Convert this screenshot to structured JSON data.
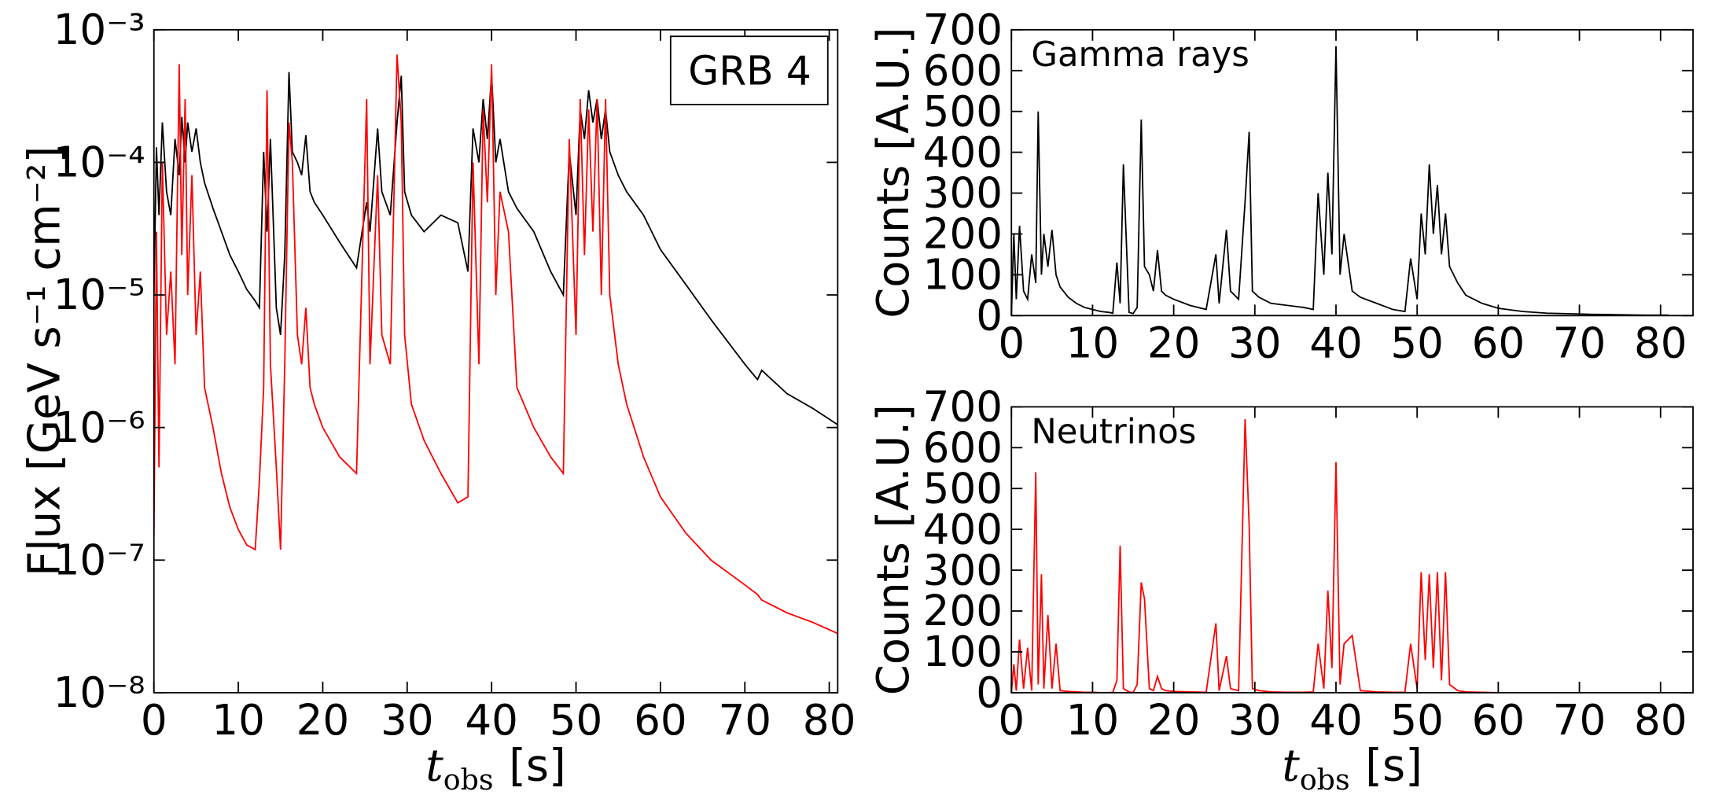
{
  "chart_data": [
    {
      "type": "line",
      "log_y": true,
      "y_label": "Flux [GeV s⁻¹ cm⁻²]",
      "x_label": {
        "symbol": "t",
        "subscript": "obs",
        "unit": "[s]"
      },
      "annotation": "GRB 4",
      "annotation_box": true,
      "xlim": [
        0,
        81
      ],
      "ylim": [
        1e-08,
        0.001
      ],
      "xticks": [
        0,
        10,
        20,
        30,
        40,
        50,
        60,
        70,
        80
      ],
      "yticks": [
        {
          "value": 1e-08,
          "label": "10⁻⁸"
        },
        {
          "value": 1e-07,
          "label": "10⁻⁷"
        },
        {
          "value": 1e-06,
          "label": "10⁻⁶"
        },
        {
          "value": 1e-05,
          "label": "10⁻⁵"
        },
        {
          "value": 0.0001,
          "label": "10⁻⁴"
        },
        {
          "value": 0.001,
          "label": "10⁻³"
        }
      ],
      "x": [
        0,
        0.3,
        0.6,
        1,
        1.5,
        2,
        2.5,
        3,
        3.3,
        3.7,
        4,
        4.5,
        5,
        5.5,
        6,
        7,
        8,
        9,
        10,
        11,
        12,
        12.5,
        13,
        13.4,
        13.8,
        14.5,
        15,
        15.5,
        16,
        16.4,
        17,
        17.5,
        18,
        18.5,
        19,
        20,
        22,
        24,
        25.2,
        25.6,
        26.5,
        27,
        28,
        28.8,
        29.3,
        29.7,
        30.5,
        32,
        34,
        36,
        37.2,
        37.8,
        38.5,
        39,
        39.5,
        40,
        40.5,
        41,
        42,
        43,
        45,
        47,
        48.5,
        49.2,
        50,
        50.5,
        51,
        51.5,
        52,
        52.5,
        53,
        53.5,
        54,
        55,
        56,
        58,
        60,
        63,
        66,
        70,
        71.5,
        72,
        75,
        78,
        81
      ],
      "series": [
        {
          "color": "#000000",
          "values": [
            1e-05,
            0.00013,
            4e-05,
            0.0002,
            6e-05,
            4e-05,
            0.00015,
            8e-05,
            0.00022,
            0.0001,
            0.0002,
            0.00012,
            0.00018,
            0.0001,
            7e-05,
            4.5e-05,
            3e-05,
            2e-05,
            1.5e-05,
            1.1e-05,
            9e-06,
            8e-06,
            0.00012,
            3e-05,
            0.00015,
            8e-06,
            5e-06,
            2e-05,
            0.00048,
            0.00012,
            0.0001,
            8e-05,
            0.00016,
            6e-05,
            5e-05,
            4e-05,
            2.5e-05,
            1.6e-05,
            5e-05,
            3e-05,
            0.00018,
            6e-05,
            4e-05,
            0.0002,
            0.00045,
            6e-05,
            4e-05,
            3e-05,
            4e-05,
            3.5e-05,
            1.5e-05,
            0.00018,
            0.0001,
            0.0003,
            0.00015,
            0.00046,
            0.0001,
            0.00015,
            6e-05,
            4.5e-05,
            3e-05,
            1.5e-05,
            1e-05,
            0.00012,
            4e-05,
            0.00025,
            0.00015,
            0.00035,
            0.0002,
            0.0003,
            0.00015,
            0.00025,
            0.00012,
            8e-05,
            6e-05,
            4e-05,
            2.2e-05,
            1.2e-05,
            6.5e-06,
            3e-06,
            2.3e-06,
            2.7e-06,
            1.8e-06,
            1.4e-06,
            1.05e-06
          ]
        },
        {
          "color": "#ff0000",
          "values": [
            1.5e-07,
            3e-05,
            5e-07,
            0.0001,
            5e-06,
            1.5e-05,
            3e-06,
            0.00055,
            2e-05,
            0.0003,
            1e-05,
            8e-05,
            5e-06,
            1.5e-05,
            2e-06,
            1e-06,
            4.5e-07,
            2.5e-07,
            1.7e-07,
            1.3e-07,
            1.2e-07,
            4e-07,
            2e-06,
            0.00035,
            3e-06,
            5e-07,
            1.2e-07,
            3e-06,
            0.0002,
            0.0001,
            5e-06,
            3e-06,
            8e-06,
            2e-06,
            1.5e-06,
            1e-06,
            6e-07,
            4.5e-07,
            0.0003,
            3e-06,
            8e-05,
            5e-06,
            3e-06,
            0.00065,
            0.0002,
            5e-06,
            1.5e-06,
            8e-07,
            4.5e-07,
            2.7e-07,
            3e-07,
            0.0001,
            3e-06,
            0.00025,
            5e-05,
            0.00055,
            1e-05,
            6e-05,
            3e-05,
            2e-06,
            1e-06,
            6e-07,
            4.5e-07,
            0.00015,
            5e-06,
            0.0003,
            2e-05,
            0.00025,
            3e-05,
            0.0003,
            1e-05,
            0.0003,
            1e-05,
            3e-06,
            1.5e-06,
            6e-07,
            3e-07,
            1.6e-07,
            1e-07,
            6.5e-08,
            5.5e-08,
            5e-08,
            4e-08,
            3.4e-08,
            2.8e-08
          ]
        }
      ]
    },
    {
      "type": "line",
      "y_label": "Counts [A.U.]",
      "annotation": "Gamma rays",
      "xlim": [
        0,
        84
      ],
      "ylim": [
        0,
        700
      ],
      "xticks": [
        0,
        10,
        20,
        30,
        40,
        50,
        60,
        70,
        80
      ],
      "yticks": [
        0,
        100,
        200,
        300,
        400,
        500,
        600,
        700
      ],
      "x": [
        0,
        0.3,
        0.6,
        1,
        1.5,
        2,
        2.5,
        3,
        3.3,
        3.7,
        4,
        4.5,
        5,
        5.5,
        6,
        7,
        8,
        9,
        10,
        11,
        12,
        12.5,
        13,
        13.4,
        13.8,
        14.5,
        15,
        15.5,
        16,
        16.4,
        17,
        17.5,
        18,
        18.5,
        19,
        20,
        22,
        24,
        25.2,
        25.6,
        26.5,
        27,
        28,
        28.8,
        29.3,
        29.7,
        30.5,
        32,
        34,
        36,
        37.2,
        37.8,
        38.5,
        39,
        39.5,
        40,
        40.5,
        41,
        42,
        43,
        45,
        47,
        48.5,
        49.2,
        50,
        50.5,
        51,
        51.5,
        52,
        52.5,
        53,
        53.5,
        54,
        55,
        56,
        58,
        60,
        63,
        66,
        70,
        71.5,
        72,
        75,
        78,
        81
      ],
      "series": [
        {
          "color": "#000000",
          "values": [
            0,
            200,
            40,
            220,
            60,
            40,
            150,
            80,
            500,
            100,
            200,
            120,
            210,
            100,
            70,
            45,
            30,
            20,
            15,
            10,
            8,
            6,
            130,
            30,
            370,
            8,
            5,
            20,
            480,
            120,
            100,
            60,
            160,
            60,
            50,
            40,
            25,
            15,
            150,
            30,
            210,
            60,
            40,
            280,
            450,
            60,
            45,
            30,
            25,
            20,
            15,
            300,
            100,
            350,
            150,
            660,
            100,
            200,
            60,
            45,
            30,
            15,
            10,
            140,
            40,
            250,
            150,
            370,
            200,
            320,
            150,
            250,
            120,
            80,
            50,
            30,
            18,
            10,
            6,
            4,
            3,
            3,
            2,
            1,
            1
          ]
        }
      ]
    },
    {
      "type": "line",
      "y_label": "Counts [A.U.]",
      "annotation": "Neutrinos",
      "x_label": {
        "symbol": "t",
        "subscript": "obs",
        "unit": "[s]"
      },
      "xlim": [
        0,
        84
      ],
      "ylim": [
        0,
        700
      ],
      "xticks": [
        0,
        10,
        20,
        30,
        40,
        50,
        60,
        70,
        80
      ],
      "yticks": [
        0,
        100,
        200,
        300,
        400,
        500,
        600,
        700
      ],
      "x": [
        0,
        0.3,
        0.6,
        1,
        1.5,
        2,
        2.5,
        3,
        3.3,
        3.7,
        4,
        4.5,
        5,
        5.5,
        6,
        7,
        8,
        9,
        10,
        11,
        12,
        12.5,
        13,
        13.4,
        13.8,
        14.5,
        15,
        15.5,
        16,
        16.4,
        17,
        17.5,
        18,
        18.5,
        19,
        20,
        22,
        24,
        25.2,
        25.6,
        26.5,
        27,
        28,
        28.8,
        29.3,
        29.7,
        30.5,
        32,
        34,
        36,
        37.2,
        37.8,
        38.5,
        39,
        39.5,
        40,
        40.5,
        41,
        42,
        43,
        45,
        47,
        48.5,
        49.2,
        50,
        50.5,
        51,
        51.5,
        52,
        52.5,
        53,
        53.5,
        54,
        55,
        56,
        58,
        60,
        63,
        66,
        70,
        71.5,
        72,
        75,
        78,
        81
      ],
      "series": [
        {
          "color": "#ff0000",
          "values": [
            0,
            70,
            5,
            130,
            10,
            110,
            5,
            540,
            20,
            290,
            10,
            190,
            10,
            120,
            5,
            3,
            2,
            1,
            1,
            0,
            0,
            1,
            30,
            360,
            10,
            2,
            0,
            20,
            270,
            230,
            10,
            5,
            40,
            10,
            5,
            3,
            2,
            1,
            170,
            5,
            90,
            10,
            5,
            670,
            410,
            10,
            5,
            2,
            1,
            1,
            2,
            120,
            10,
            250,
            60,
            565,
            20,
            120,
            140,
            5,
            2,
            1,
            1,
            120,
            10,
            295,
            80,
            290,
            60,
            295,
            30,
            295,
            20,
            5,
            2,
            1,
            0,
            0,
            0,
            0,
            0,
            0,
            0,
            0,
            0
          ]
        }
      ]
    }
  ]
}
